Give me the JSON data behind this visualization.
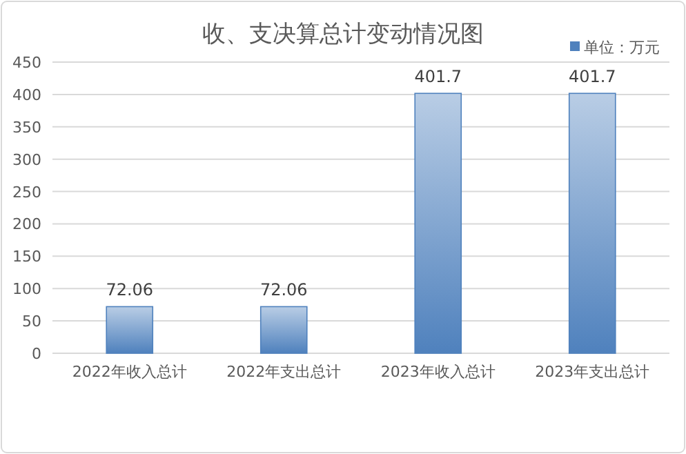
{
  "chart_data": {
    "type": "bar",
    "title": "收、支决算总计变动情况图",
    "categories": [
      "2022年收入总计",
      "2022年支出总计",
      "2023年收入总计",
      "2023年支出总计"
    ],
    "series": [
      {
        "name": "单位：万元",
        "color": "#4f81bd",
        "values": [
          72.06,
          72.06,
          401.7,
          401.7
        ]
      }
    ],
    "ylim": [
      0,
      450
    ],
    "yticks": [
      0,
      50,
      100,
      150,
      200,
      250,
      300,
      350,
      400,
      450
    ],
    "grid": "y",
    "legend": "top right",
    "data_labels": true
  }
}
